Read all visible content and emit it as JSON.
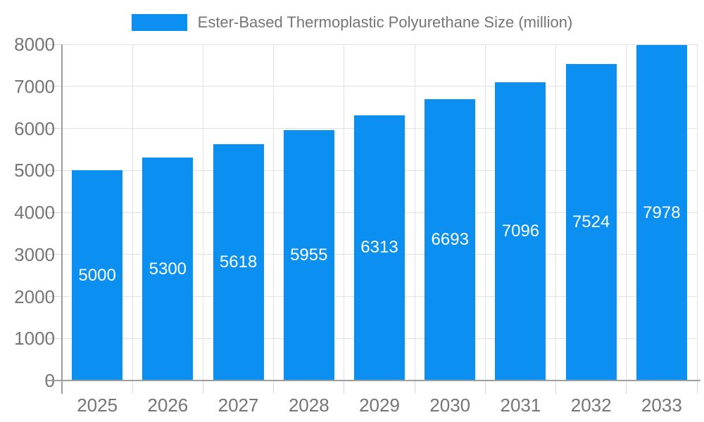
{
  "legend": {
    "label": "Ester-Based Thermoplastic Polyurethane Size (million)"
  },
  "colors": {
    "bar": "#0b90f2",
    "grid": "#e2e2e2",
    "tick": "#d6d6d6",
    "axis": "#9e9e9e",
    "axis_text": "#757575",
    "value_label": "#ffffff",
    "background": "#ffffff"
  },
  "chart_data": {
    "type": "bar",
    "title": "Ester-Based Thermoplastic Polyurethane Size (million)",
    "categories": [
      "2025",
      "2026",
      "2027",
      "2028",
      "2029",
      "2030",
      "2031",
      "2032",
      "2033"
    ],
    "values": [
      5000,
      5300,
      5618,
      5955,
      6313,
      6693,
      7096,
      7524,
      7978
    ],
    "xlabel": "",
    "ylabel": "",
    "ylim": [
      0,
      8000
    ],
    "yticks": [
      0,
      1000,
      2000,
      3000,
      4000,
      5000,
      6000,
      7000,
      8000
    ],
    "ytick_step": 1000,
    "grid": true,
    "bar_labels_inside": true,
    "legend_position": "top-center"
  }
}
